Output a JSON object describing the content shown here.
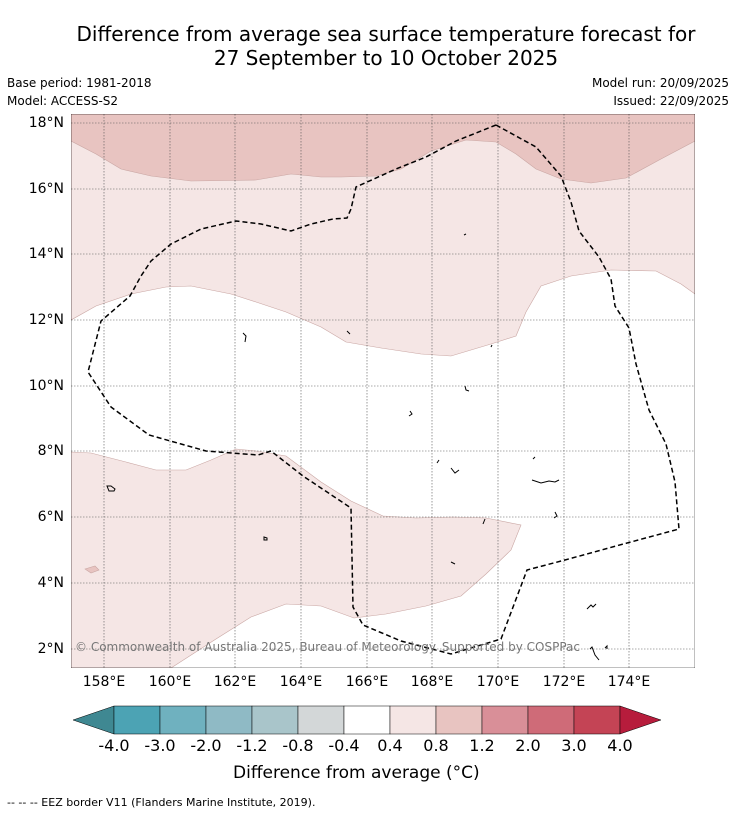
{
  "title_line1": "Difference from average sea surface temperature forecast for",
  "title_line2": "27 September to 10 October 2025",
  "base_period": "Base period: 1981-2018",
  "model": "Model: ACCESS-S2",
  "model_run": "Model run: 20/09/2025",
  "issued": "Issued: 22/09/2025",
  "lat_labels": [
    "18°N",
    "16°N",
    "14°N",
    "12°N",
    "10°N",
    "8°N",
    "6°N",
    "4°N",
    "2°N"
  ],
  "lon_labels": [
    "158°E",
    "160°E",
    "162°E",
    "164°E",
    "166°E",
    "168°E",
    "170°E",
    "172°E",
    "174°E"
  ],
  "copyright": "© Commonwealth of Australia 2025, Bureau of Meteorology. Supported by COSPPac",
  "colorbar": {
    "ticks": [
      "-4.0",
      "-3.0",
      "-2.0",
      "-1.2",
      "-0.8",
      "-0.4",
      "0.4",
      "0.8",
      "1.2",
      "2.0",
      "3.0",
      "4.0"
    ],
    "colors": [
      "#3f8892",
      "#4ca3b4",
      "#6fb1bf",
      "#8fbac5",
      "#a9c5ca",
      "#d3d7d8",
      "#ffffff",
      "#f5e6e5",
      "#e8c4c1",
      "#d98f98",
      "#cf6b78",
      "#c44455",
      "#b71c3c"
    ],
    "title": "Difference from average (°C)"
  },
  "legend_footer": "--  --  -- EEZ border V11 (Flanders Marine Institute, 2019).",
  "colors": {
    "light_pink": "#f5e6e5",
    "pink": "#e8c4c1",
    "grid": "#555555"
  }
}
